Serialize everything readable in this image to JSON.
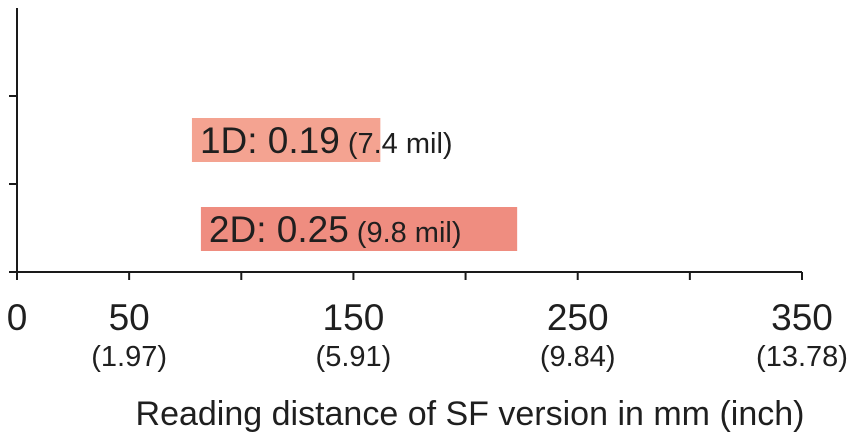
{
  "chart_data": {
    "type": "bar",
    "orientation": "horizontal",
    "xlabel": "Reading distance of SF version in mm (inch)",
    "xlim": [
      0,
      350
    ],
    "x_ticks": [
      {
        "value": 0,
        "label": "0",
        "sublabel": ""
      },
      {
        "value": 50,
        "label": "50",
        "sublabel": "(1.97)"
      },
      {
        "value": 100,
        "label": "",
        "sublabel": ""
      },
      {
        "value": 150,
        "label": "150",
        "sublabel": "(5.91)"
      },
      {
        "value": 200,
        "label": "",
        "sublabel": ""
      },
      {
        "value": 250,
        "label": "250",
        "sublabel": "(9.84)"
      },
      {
        "value": 300,
        "label": "",
        "sublabel": ""
      },
      {
        "value": 350,
        "label": "350",
        "sublabel": "(13.78)"
      }
    ],
    "bars": [
      {
        "label_main": "1D: 0.19",
        "label_paren": "(7.4 mil)",
        "start": 78,
        "end": 162,
        "color": "#f4a391"
      },
      {
        "label_main": "2D: 0.25",
        "label_paren": "(9.8 mil)",
        "start": 82,
        "end": 223,
        "color": "#ef8d80"
      }
    ],
    "grid": false
  }
}
